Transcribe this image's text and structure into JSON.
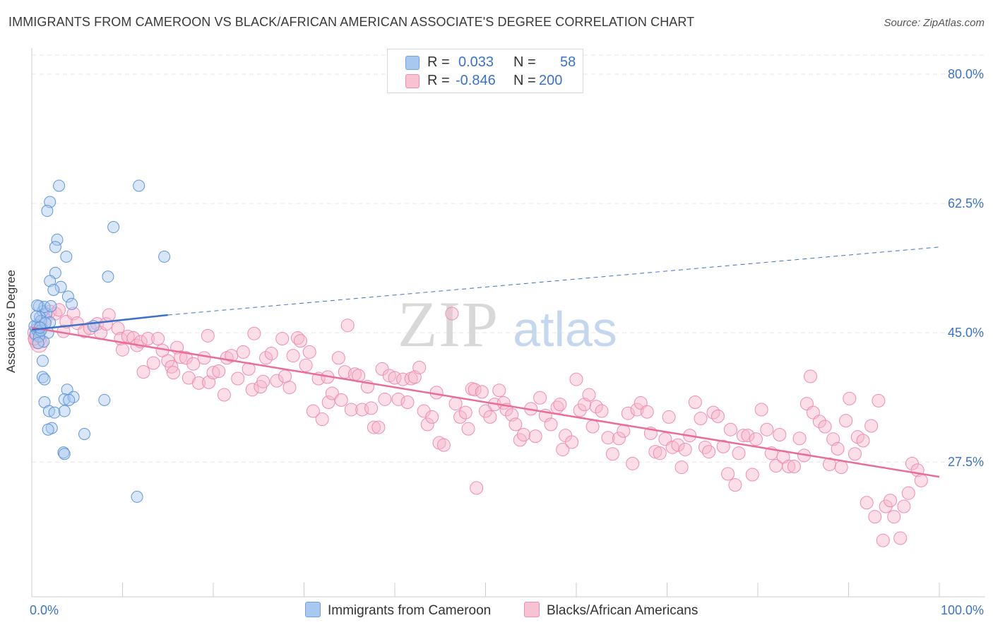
{
  "header": {
    "title": "IMMIGRANTS FROM CAMEROON VS BLACK/AFRICAN AMERICAN ASSOCIATE'S DEGREE CORRELATION CHART",
    "source": "Source: ZipAtlas.com"
  },
  "legend_top": {
    "rows": [
      {
        "r_label": "R =",
        "r_value": "0.033",
        "n_label": "N =",
        "n_value": "58",
        "color": "#a9c8f0"
      },
      {
        "r_label": "R =",
        "r_value": "-0.846",
        "n_label": "N =",
        "n_value": "200",
        "color": "#f7b6cb"
      }
    ]
  },
  "legend_bottom": {
    "series1": "Immigrants from Cameroon",
    "series2": "Blacks/African Americans"
  },
  "watermark": {
    "zip": "ZIP",
    "atlas": "atlas"
  },
  "chart_data": {
    "type": "scatter",
    "title": "IMMIGRANTS FROM CAMEROON VS BLACK/AFRICAN AMERICAN ASSOCIATE'S DEGREE CORRELATION CHART",
    "xlabel": "",
    "ylabel": "Associate's Degree",
    "xlim": [
      0,
      100
    ],
    "ylim": [
      10.7,
      84.3
    ],
    "x_tick_labels": [
      "0.0%",
      "100.0%"
    ],
    "y_ticks": [
      27.5,
      45.0,
      62.5,
      80.0
    ],
    "y_tick_labels": [
      "27.5%",
      "45.0%",
      "62.5%",
      "80.0%"
    ],
    "grid": true,
    "legend_position": "top-center",
    "colors": {
      "series1": "#6fa3e0",
      "series2": "#f08cae",
      "line1": "#3a72c9",
      "line2": "#ea6c98",
      "tick_label": "#3b73c7"
    },
    "series": [
      {
        "name": "Immigrants from Cameroon",
        "r": 0.033,
        "n": 58,
        "trend": {
          "x": [
            0,
            15
          ],
          "y": [
            45.4,
            47.4
          ]
        },
        "trend_extrapolated": {
          "x": [
            15,
            100
          ],
          "y": [
            47.4,
            56.6
          ]
        },
        "points": [
          [
            3.0,
            64.9
          ],
          [
            2.0,
            62.7
          ],
          [
            1.7,
            61.5
          ],
          [
            11.8,
            64.9
          ],
          [
            9.0,
            59.3
          ],
          [
            14.6,
            55.3
          ],
          [
            2.8,
            57.6
          ],
          [
            2.6,
            56.6
          ],
          [
            3.8,
            55.3
          ],
          [
            2.6,
            53.1
          ],
          [
            8.4,
            52.6
          ],
          [
            2.0,
            52.0
          ],
          [
            3.2,
            51.2
          ],
          [
            2.4,
            50.8
          ],
          [
            4.0,
            49.9
          ],
          [
            4.4,
            48.9
          ],
          [
            0.8,
            48.6
          ],
          [
            1.2,
            47.9
          ],
          [
            1.6,
            47.6
          ],
          [
            0.9,
            47.1
          ],
          [
            2.0,
            46.4
          ],
          [
            1.1,
            45.6
          ],
          [
            0.7,
            45.2
          ],
          [
            0.5,
            45.5
          ],
          [
            1.8,
            45.0
          ],
          [
            0.4,
            44.8
          ],
          [
            6.8,
            45.9
          ],
          [
            1.3,
            43.8
          ],
          [
            1.2,
            41.2
          ],
          [
            1.2,
            39.0
          ],
          [
            1.4,
            38.7
          ],
          [
            3.9,
            37.3
          ],
          [
            3.6,
            36.0
          ],
          [
            4.6,
            36.3
          ],
          [
            1.4,
            35.6
          ],
          [
            4.1,
            35.9
          ],
          [
            8.0,
            35.9
          ],
          [
            1.9,
            34.4
          ],
          [
            2.5,
            34.2
          ],
          [
            3.6,
            34.4
          ],
          [
            2.2,
            32.1
          ],
          [
            1.8,
            31.9
          ],
          [
            5.8,
            31.3
          ],
          [
            3.5,
            28.8
          ],
          [
            3.6,
            28.6
          ],
          [
            11.6,
            22.8
          ],
          [
            0.6,
            46.0
          ],
          [
            1.0,
            46.6
          ],
          [
            0.3,
            45.9
          ],
          [
            0.8,
            44.5
          ],
          [
            1.0,
            45.3
          ],
          [
            1.4,
            48.5
          ],
          [
            2.1,
            48.6
          ],
          [
            0.6,
            48.7
          ],
          [
            1.5,
            46.3
          ],
          [
            0.9,
            45.7
          ],
          [
            0.5,
            47.2
          ],
          [
            0.7,
            43.6
          ]
        ]
      },
      {
        "name": "Blacks/African Americans",
        "r": -0.846,
        "n": 200,
        "trend": {
          "x": [
            0,
            100
          ],
          "y": [
            45.7,
            25.5
          ]
        },
        "points": [
          [
            0.5,
            45.0
          ],
          [
            0.6,
            44.0
          ],
          [
            0.8,
            43.5
          ],
          [
            1.0,
            46.5
          ],
          [
            1.5,
            46.8
          ],
          [
            2.0,
            47.9
          ],
          [
            2.6,
            47.6
          ],
          [
            3.5,
            45.2
          ],
          [
            3.8,
            46.5
          ],
          [
            4.6,
            47.6
          ],
          [
            5.0,
            46.3
          ],
          [
            5.8,
            45.2
          ],
          [
            6.4,
            45.6
          ],
          [
            7.2,
            46.2
          ],
          [
            7.6,
            45.0
          ],
          [
            8.2,
            46.2
          ],
          [
            8.5,
            47.4
          ],
          [
            9.5,
            45.6
          ],
          [
            9.8,
            44.2
          ],
          [
            10.0,
            42.7
          ],
          [
            10.6,
            44.5
          ],
          [
            11.2,
            44.3
          ],
          [
            11.6,
            43.3
          ],
          [
            12.0,
            43.8
          ],
          [
            12.3,
            39.7
          ],
          [
            12.8,
            44.2
          ],
          [
            13.4,
            40.9
          ],
          [
            13.9,
            44.2
          ],
          [
            14.4,
            42.6
          ],
          [
            15.0,
            41.2
          ],
          [
            15.4,
            40.4
          ],
          [
            15.6,
            39.6
          ],
          [
            16.0,
            43.0
          ],
          [
            16.4,
            41.7
          ],
          [
            17.0,
            41.6
          ],
          [
            17.3,
            38.9
          ],
          [
            17.8,
            40.8
          ],
          [
            18.4,
            38.2
          ],
          [
            19.0,
            41.6
          ],
          [
            19.5,
            38.3
          ],
          [
            19.4,
            44.6
          ],
          [
            20.0,
            39.6
          ],
          [
            20.6,
            39.8
          ],
          [
            21.2,
            36.6
          ],
          [
            21.5,
            41.6
          ],
          [
            22.0,
            41.9
          ],
          [
            22.7,
            38.8
          ],
          [
            23.3,
            42.4
          ],
          [
            23.9,
            40.1
          ],
          [
            24.5,
            44.9
          ],
          [
            24.3,
            37.3
          ],
          [
            25.2,
            37.7
          ],
          [
            25.5,
            38.4
          ],
          [
            25.8,
            41.6
          ],
          [
            26.4,
            42.2
          ],
          [
            27.0,
            38.5
          ],
          [
            27.6,
            44.2
          ],
          [
            27.9,
            39.1
          ],
          [
            28.4,
            37.6
          ],
          [
            28.8,
            41.9
          ],
          [
            29.3,
            44.3
          ],
          [
            29.6,
            43.9
          ],
          [
            30.2,
            40.6
          ],
          [
            30.6,
            42.4
          ],
          [
            31.0,
            34.4
          ],
          [
            31.6,
            38.8
          ],
          [
            32.0,
            33.3
          ],
          [
            32.6,
            39.0
          ],
          [
            32.7,
            35.6
          ],
          [
            33.1,
            36.8
          ],
          [
            33.8,
            41.6
          ],
          [
            34.1,
            35.9
          ],
          [
            34.5,
            39.7
          ],
          [
            34.8,
            46.0
          ],
          [
            35.2,
            34.6
          ],
          [
            35.6,
            39.4
          ],
          [
            36.0,
            39.2
          ],
          [
            36.4,
            34.6
          ],
          [
            37.0,
            37.7
          ],
          [
            37.4,
            34.8
          ],
          [
            37.7,
            32.2
          ],
          [
            38.2,
            32.2
          ],
          [
            38.6,
            40.1
          ],
          [
            38.9,
            36.0
          ],
          [
            39.4,
            39.2
          ],
          [
            40.0,
            38.9
          ],
          [
            40.4,
            36.0
          ],
          [
            40.9,
            38.7
          ],
          [
            41.4,
            35.6
          ],
          [
            41.8,
            38.8
          ],
          [
            42.2,
            39.0
          ],
          [
            42.7,
            40.3
          ],
          [
            43.2,
            34.4
          ],
          [
            43.6,
            32.6
          ],
          [
            44.1,
            33.6
          ],
          [
            44.6,
            36.9
          ],
          [
            44.9,
            30.1
          ],
          [
            45.4,
            29.8
          ],
          [
            46.3,
            47.6
          ],
          [
            46.7,
            35.4
          ],
          [
            47.2,
            33.6
          ],
          [
            47.8,
            34.2
          ],
          [
            48.1,
            32.0
          ],
          [
            48.5,
            37.4
          ],
          [
            48.8,
            37.3
          ],
          [
            49.0,
            24.0
          ],
          [
            49.6,
            37.0
          ],
          [
            50.0,
            34.4
          ],
          [
            50.5,
            33.6
          ],
          [
            51.0,
            35.3
          ],
          [
            51.5,
            37.2
          ],
          [
            52.0,
            35.5
          ],
          [
            52.3,
            34.6
          ],
          [
            52.9,
            33.9
          ],
          [
            53.3,
            32.6
          ],
          [
            53.8,
            30.5
          ],
          [
            54.2,
            31.2
          ],
          [
            55.0,
            34.7
          ],
          [
            55.5,
            31.0
          ],
          [
            56.0,
            36.2
          ],
          [
            56.6,
            33.8
          ],
          [
            57.2,
            32.6
          ],
          [
            57.9,
            34.9
          ],
          [
            58.2,
            35.3
          ],
          [
            58.5,
            29.2
          ],
          [
            58.8,
            31.1
          ],
          [
            59.5,
            30.2
          ],
          [
            60.0,
            38.7
          ],
          [
            60.4,
            34.5
          ],
          [
            60.9,
            35.3
          ],
          [
            61.4,
            36.6
          ],
          [
            61.8,
            32.3
          ],
          [
            62.2,
            35.0
          ],
          [
            62.8,
            34.4
          ],
          [
            63.5,
            30.8
          ],
          [
            64.0,
            28.6
          ],
          [
            64.7,
            30.7
          ],
          [
            65.2,
            31.7
          ],
          [
            65.7,
            34.1
          ],
          [
            66.2,
            27.3
          ],
          [
            66.7,
            34.6
          ],
          [
            67.1,
            35.5
          ],
          [
            67.8,
            34.3
          ],
          [
            68.2,
            31.4
          ],
          [
            68.7,
            28.9
          ],
          [
            69.2,
            28.7
          ],
          [
            69.8,
            30.6
          ],
          [
            70.2,
            33.6
          ],
          [
            70.6,
            29.5
          ],
          [
            71.2,
            29.8
          ],
          [
            71.6,
            26.8
          ],
          [
            72.0,
            29.2
          ],
          [
            72.5,
            31.1
          ],
          [
            73.1,
            35.6
          ],
          [
            73.7,
            33.4
          ],
          [
            74.2,
            29.5
          ],
          [
            74.6,
            28.9
          ],
          [
            75.1,
            34.2
          ],
          [
            75.6,
            33.7
          ],
          [
            76.2,
            29.6
          ],
          [
            76.7,
            25.9
          ],
          [
            77.0,
            31.9
          ],
          [
            77.5,
            24.4
          ],
          [
            77.9,
            28.7
          ],
          [
            78.4,
            31.1
          ],
          [
            78.9,
            31.1
          ],
          [
            79.4,
            25.8
          ],
          [
            79.8,
            30.6
          ],
          [
            80.4,
            34.6
          ],
          [
            81.0,
            31.9
          ],
          [
            81.5,
            28.7
          ],
          [
            82.0,
            27.0
          ],
          [
            82.4,
            31.2
          ],
          [
            82.8,
            28.2
          ],
          [
            83.4,
            26.9
          ],
          [
            84.0,
            26.9
          ],
          [
            84.6,
            30.7
          ],
          [
            85.1,
            28.4
          ],
          [
            85.8,
            39.1
          ],
          [
            85.4,
            35.4
          ],
          [
            86.1,
            34.2
          ],
          [
            86.8,
            33.0
          ],
          [
            87.4,
            32.3
          ],
          [
            87.9,
            27.2
          ],
          [
            88.3,
            30.6
          ],
          [
            88.8,
            29.3
          ],
          [
            89.2,
            26.8
          ],
          [
            89.7,
            33.1
          ],
          [
            90.1,
            36.1
          ],
          [
            90.7,
            28.6
          ],
          [
            91.0,
            30.9
          ],
          [
            91.6,
            30.4
          ],
          [
            92.0,
            22.0
          ],
          [
            92.5,
            32.4
          ],
          [
            92.9,
            20.1
          ],
          [
            93.3,
            35.8
          ],
          [
            93.8,
            16.9
          ],
          [
            94.1,
            21.5
          ],
          [
            94.6,
            22.3
          ],
          [
            95.0,
            20.1
          ],
          [
            95.7,
            17.2
          ],
          [
            96.1,
            21.5
          ],
          [
            96.6,
            23.3
          ],
          [
            97.0,
            27.3
          ],
          [
            97.6,
            26.4
          ],
          [
            98.0,
            25.0
          ],
          [
            0.3,
            44.2
          ],
          [
            3.0,
            48.1
          ]
        ]
      }
    ]
  }
}
